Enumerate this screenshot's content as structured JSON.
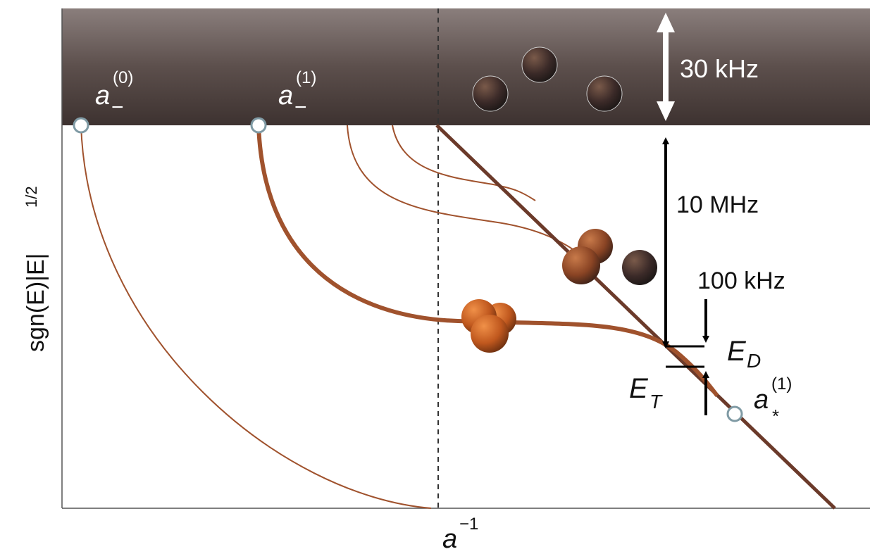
{
  "band_label": "30 kHz",
  "gap_labels": {
    "deep": "10 MHz",
    "small": "100 kHz"
  },
  "energies": {
    "dimer": {
      "base": "E",
      "sub": "D"
    },
    "trimer": {
      "base": "E",
      "sub": "T"
    }
  },
  "points": [
    {
      "base": "a",
      "sub": "−",
      "sup": "(0)"
    },
    {
      "base": "a",
      "sub": "−",
      "sup": "(1)"
    },
    {
      "base": "a",
      "sub": "*",
      "sup": "(1)"
    }
  ],
  "axes": {
    "x": {
      "base": "a",
      "sup": "−1"
    },
    "y": {
      "base": "sgn(E)|E|",
      "sup": "1/2"
    }
  }
}
